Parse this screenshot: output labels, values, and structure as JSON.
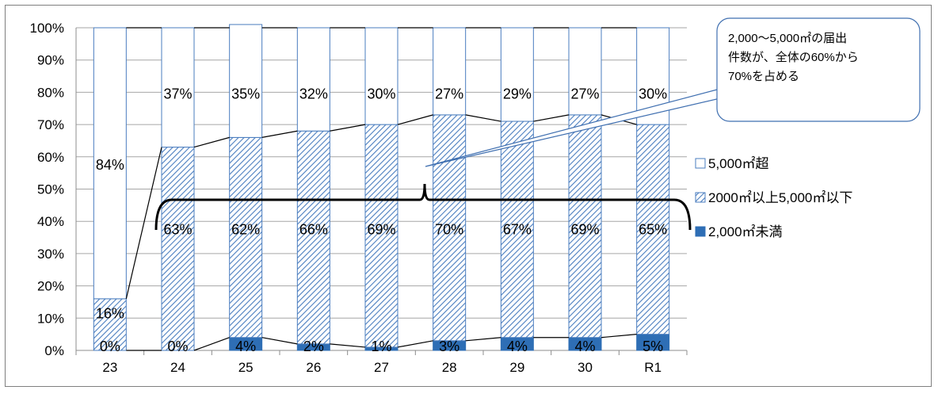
{
  "chart_data": {
    "type": "bar",
    "stacked": true,
    "percent_stacked": true,
    "categories": [
      "23",
      "24",
      "25",
      "26",
      "27",
      "28",
      "29",
      "30",
      "R1"
    ],
    "series": [
      {
        "name": "2,000㎡未満",
        "values": [
          0,
          0,
          4,
          2,
          1,
          3,
          4,
          4,
          5
        ],
        "labels": [
          "0%",
          "0%",
          "4%",
          "2%",
          "1%",
          "3%",
          "4%",
          "4%",
          "5%"
        ],
        "color": "#2e6eb5",
        "pattern": "solid"
      },
      {
        "name": "2000㎡以上5,000㎡以下",
        "values": [
          16,
          63,
          62,
          66,
          69,
          70,
          67,
          69,
          65
        ],
        "labels": [
          "16%",
          "63%",
          "62%",
          "66%",
          "69%",
          "70%",
          "67%",
          "69%",
          "65%"
        ],
        "color": "#4a7dbf",
        "pattern": "diagonal-hatch"
      },
      {
        "name": "5,000㎡超",
        "values": [
          84,
          37,
          35,
          32,
          30,
          27,
          29,
          27,
          30
        ],
        "labels": [
          "84%",
          "37%",
          "35%",
          "32%",
          "30%",
          "27%",
          "29%",
          "27%",
          "30%"
        ],
        "color": "#ffffff",
        "pattern": "outline"
      }
    ],
    "y_ticks": [
      "0%",
      "10%",
      "20%",
      "30%",
      "40%",
      "50%",
      "60%",
      "70%",
      "80%",
      "90%",
      "100%"
    ],
    "ylim": [
      0,
      100
    ],
    "grid": true,
    "legend_position": "right",
    "legend": [
      {
        "label": "5,000㎡超",
        "swatch": "outline"
      },
      {
        "label": "2000㎡以上5,000㎡以下",
        "swatch": "diagonal-hatch"
      },
      {
        "label": "2,000㎡未満",
        "swatch": "solid"
      }
    ],
    "annotation": {
      "lines": [
        "2,000～5,000㎡の届出",
        "件数が、全体の60%から",
        "70%を占める"
      ]
    }
  }
}
